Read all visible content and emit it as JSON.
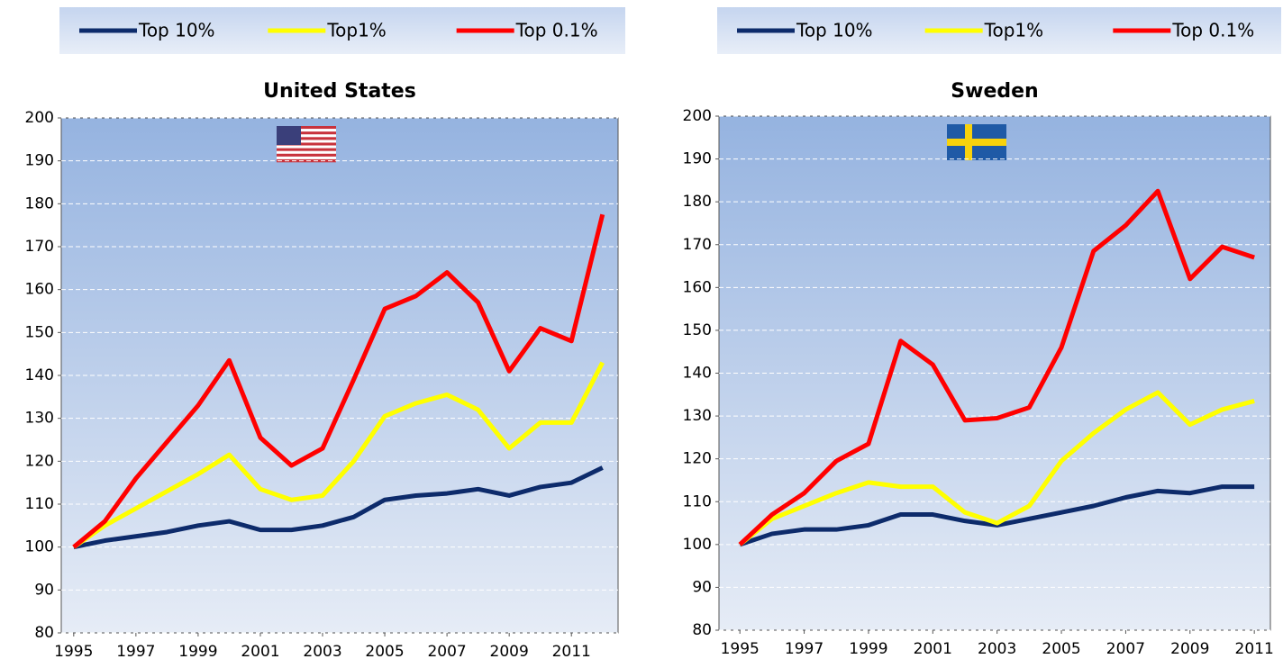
{
  "chart_data": [
    {
      "type": "line",
      "title": "United States",
      "x": [
        1995,
        1996,
        1997,
        1998,
        1999,
        2000,
        2001,
        2002,
        2003,
        2004,
        2005,
        2006,
        2007,
        2008,
        2009,
        2010,
        2011,
        2012
      ],
      "xlim": [
        1994.6,
        2012.5
      ],
      "xticks": [
        1995,
        1997,
        1999,
        2001,
        2003,
        2005,
        2007,
        2009,
        2011
      ],
      "ylim": [
        80,
        200
      ],
      "yticks": [
        80,
        90,
        100,
        110,
        120,
        130,
        140,
        150,
        160,
        170,
        180,
        190,
        200
      ],
      "grid": true,
      "series": [
        {
          "name": "Top 10%",
          "color": "#0d2b6b",
          "values": [
            100,
            101.5,
            102.5,
            103.5,
            105,
            106,
            104,
            104,
            105,
            107,
            111,
            112,
            112.5,
            113.5,
            112,
            114,
            115,
            118.5
          ]
        },
        {
          "name": "Top1%",
          "color": "#ffff00",
          "values": [
            100,
            105,
            109,
            113,
            117,
            121.5,
            113.5,
            111,
            112,
            120,
            130.5,
            133.5,
            135.5,
            132,
            123,
            129,
            129,
            143
          ]
        },
        {
          "name": "Top 0.1%",
          "color": "#ff0000",
          "values": [
            100,
            106,
            116,
            124.5,
            133,
            143.5,
            125.5,
            119,
            123,
            139,
            155.5,
            158.5,
            164,
            157,
            141,
            151,
            148,
            177.5
          ]
        }
      ]
    },
    {
      "type": "line",
      "title": "Sweden",
      "x": [
        1995,
        1996,
        1997,
        1998,
        1999,
        2000,
        2001,
        2002,
        2003,
        2004,
        2005,
        2006,
        2007,
        2008,
        2009,
        2010,
        2011
      ],
      "xlim": [
        1994.35,
        2011.5
      ],
      "xticks": [
        1995,
        1997,
        1999,
        2001,
        2003,
        2005,
        2007,
        2009,
        2011
      ],
      "ylim": [
        80,
        200
      ],
      "yticks": [
        80,
        90,
        100,
        110,
        120,
        130,
        140,
        150,
        160,
        170,
        180,
        190,
        200
      ],
      "grid": true,
      "series": [
        {
          "name": "Top 10%",
          "color": "#0d2b6b",
          "values": [
            100,
            102.5,
            103.5,
            103.5,
            104.5,
            107,
            107,
            105.5,
            104.5,
            106,
            107.5,
            109,
            111,
            112.5,
            112,
            113.5,
            113.5
          ]
        },
        {
          "name": "Top1%",
          "color": "#ffff00",
          "values": [
            100,
            106,
            109,
            112,
            114.5,
            113.5,
            113.5,
            107.5,
            105,
            109,
            119.5,
            126,
            131.5,
            135.5,
            128,
            131.5,
            133.5
          ]
        },
        {
          "name": "Top 0.1%",
          "color": "#ff0000",
          "values": [
            100,
            107,
            112,
            119.5,
            123.5,
            147.5,
            142,
            129,
            129.5,
            132,
            146,
            168.5,
            174.5,
            182.5,
            162,
            169.5,
            167
          ]
        }
      ]
    }
  ]
}
